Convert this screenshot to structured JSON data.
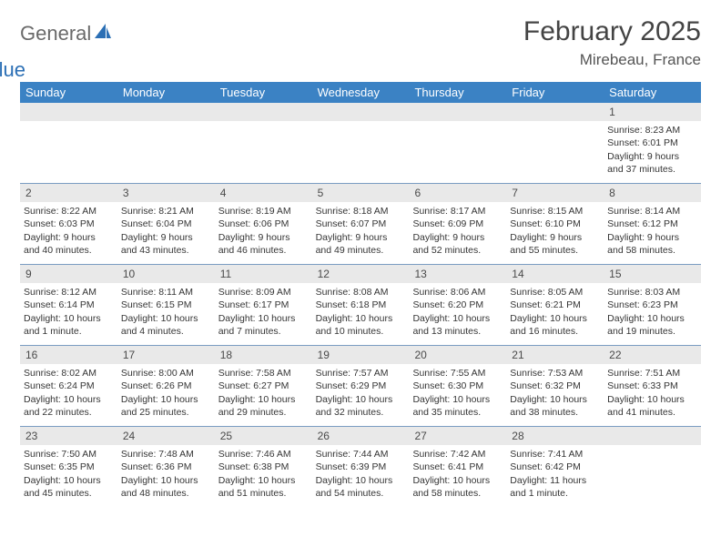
{
  "brand": {
    "part1": "General",
    "part2": "Blue"
  },
  "title": "February 2025",
  "location": "Mirebeau, France",
  "colors": {
    "header_bg": "#3b82c4",
    "header_text": "#ffffff",
    "daynum_bg": "#e9e9e9",
    "row_border": "#7a9cc2",
    "brand_gray": "#6a6a6a",
    "brand_blue": "#2b6fb5",
    "text": "#353535"
  },
  "dayHeaders": [
    "Sunday",
    "Monday",
    "Tuesday",
    "Wednesday",
    "Thursday",
    "Friday",
    "Saturday"
  ],
  "weeks": [
    [
      {
        "n": "",
        "sr": "",
        "ss": "",
        "dl1": "",
        "dl2": ""
      },
      {
        "n": "",
        "sr": "",
        "ss": "",
        "dl1": "",
        "dl2": ""
      },
      {
        "n": "",
        "sr": "",
        "ss": "",
        "dl1": "",
        "dl2": ""
      },
      {
        "n": "",
        "sr": "",
        "ss": "",
        "dl1": "",
        "dl2": ""
      },
      {
        "n": "",
        "sr": "",
        "ss": "",
        "dl1": "",
        "dl2": ""
      },
      {
        "n": "",
        "sr": "",
        "ss": "",
        "dl1": "",
        "dl2": ""
      },
      {
        "n": "1",
        "sr": "Sunrise: 8:23 AM",
        "ss": "Sunset: 6:01 PM",
        "dl1": "Daylight: 9 hours",
        "dl2": "and 37 minutes."
      }
    ],
    [
      {
        "n": "2",
        "sr": "Sunrise: 8:22 AM",
        "ss": "Sunset: 6:03 PM",
        "dl1": "Daylight: 9 hours",
        "dl2": "and 40 minutes."
      },
      {
        "n": "3",
        "sr": "Sunrise: 8:21 AM",
        "ss": "Sunset: 6:04 PM",
        "dl1": "Daylight: 9 hours",
        "dl2": "and 43 minutes."
      },
      {
        "n": "4",
        "sr": "Sunrise: 8:19 AM",
        "ss": "Sunset: 6:06 PM",
        "dl1": "Daylight: 9 hours",
        "dl2": "and 46 minutes."
      },
      {
        "n": "5",
        "sr": "Sunrise: 8:18 AM",
        "ss": "Sunset: 6:07 PM",
        "dl1": "Daylight: 9 hours",
        "dl2": "and 49 minutes."
      },
      {
        "n": "6",
        "sr": "Sunrise: 8:17 AM",
        "ss": "Sunset: 6:09 PM",
        "dl1": "Daylight: 9 hours",
        "dl2": "and 52 minutes."
      },
      {
        "n": "7",
        "sr": "Sunrise: 8:15 AM",
        "ss": "Sunset: 6:10 PM",
        "dl1": "Daylight: 9 hours",
        "dl2": "and 55 minutes."
      },
      {
        "n": "8",
        "sr": "Sunrise: 8:14 AM",
        "ss": "Sunset: 6:12 PM",
        "dl1": "Daylight: 9 hours",
        "dl2": "and 58 minutes."
      }
    ],
    [
      {
        "n": "9",
        "sr": "Sunrise: 8:12 AM",
        "ss": "Sunset: 6:14 PM",
        "dl1": "Daylight: 10 hours",
        "dl2": "and 1 minute."
      },
      {
        "n": "10",
        "sr": "Sunrise: 8:11 AM",
        "ss": "Sunset: 6:15 PM",
        "dl1": "Daylight: 10 hours",
        "dl2": "and 4 minutes."
      },
      {
        "n": "11",
        "sr": "Sunrise: 8:09 AM",
        "ss": "Sunset: 6:17 PM",
        "dl1": "Daylight: 10 hours",
        "dl2": "and 7 minutes."
      },
      {
        "n": "12",
        "sr": "Sunrise: 8:08 AM",
        "ss": "Sunset: 6:18 PM",
        "dl1": "Daylight: 10 hours",
        "dl2": "and 10 minutes."
      },
      {
        "n": "13",
        "sr": "Sunrise: 8:06 AM",
        "ss": "Sunset: 6:20 PM",
        "dl1": "Daylight: 10 hours",
        "dl2": "and 13 minutes."
      },
      {
        "n": "14",
        "sr": "Sunrise: 8:05 AM",
        "ss": "Sunset: 6:21 PM",
        "dl1": "Daylight: 10 hours",
        "dl2": "and 16 minutes."
      },
      {
        "n": "15",
        "sr": "Sunrise: 8:03 AM",
        "ss": "Sunset: 6:23 PM",
        "dl1": "Daylight: 10 hours",
        "dl2": "and 19 minutes."
      }
    ],
    [
      {
        "n": "16",
        "sr": "Sunrise: 8:02 AM",
        "ss": "Sunset: 6:24 PM",
        "dl1": "Daylight: 10 hours",
        "dl2": "and 22 minutes."
      },
      {
        "n": "17",
        "sr": "Sunrise: 8:00 AM",
        "ss": "Sunset: 6:26 PM",
        "dl1": "Daylight: 10 hours",
        "dl2": "and 25 minutes."
      },
      {
        "n": "18",
        "sr": "Sunrise: 7:58 AM",
        "ss": "Sunset: 6:27 PM",
        "dl1": "Daylight: 10 hours",
        "dl2": "and 29 minutes."
      },
      {
        "n": "19",
        "sr": "Sunrise: 7:57 AM",
        "ss": "Sunset: 6:29 PM",
        "dl1": "Daylight: 10 hours",
        "dl2": "and 32 minutes."
      },
      {
        "n": "20",
        "sr": "Sunrise: 7:55 AM",
        "ss": "Sunset: 6:30 PM",
        "dl1": "Daylight: 10 hours",
        "dl2": "and 35 minutes."
      },
      {
        "n": "21",
        "sr": "Sunrise: 7:53 AM",
        "ss": "Sunset: 6:32 PM",
        "dl1": "Daylight: 10 hours",
        "dl2": "and 38 minutes."
      },
      {
        "n": "22",
        "sr": "Sunrise: 7:51 AM",
        "ss": "Sunset: 6:33 PM",
        "dl1": "Daylight: 10 hours",
        "dl2": "and 41 minutes."
      }
    ],
    [
      {
        "n": "23",
        "sr": "Sunrise: 7:50 AM",
        "ss": "Sunset: 6:35 PM",
        "dl1": "Daylight: 10 hours",
        "dl2": "and 45 minutes."
      },
      {
        "n": "24",
        "sr": "Sunrise: 7:48 AM",
        "ss": "Sunset: 6:36 PM",
        "dl1": "Daylight: 10 hours",
        "dl2": "and 48 minutes."
      },
      {
        "n": "25",
        "sr": "Sunrise: 7:46 AM",
        "ss": "Sunset: 6:38 PM",
        "dl1": "Daylight: 10 hours",
        "dl2": "and 51 minutes."
      },
      {
        "n": "26",
        "sr": "Sunrise: 7:44 AM",
        "ss": "Sunset: 6:39 PM",
        "dl1": "Daylight: 10 hours",
        "dl2": "and 54 minutes."
      },
      {
        "n": "27",
        "sr": "Sunrise: 7:42 AM",
        "ss": "Sunset: 6:41 PM",
        "dl1": "Daylight: 10 hours",
        "dl2": "and 58 minutes."
      },
      {
        "n": "28",
        "sr": "Sunrise: 7:41 AM",
        "ss": "Sunset: 6:42 PM",
        "dl1": "Daylight: 11 hours",
        "dl2": "and 1 minute."
      },
      {
        "n": "",
        "sr": "",
        "ss": "",
        "dl1": "",
        "dl2": ""
      }
    ]
  ]
}
